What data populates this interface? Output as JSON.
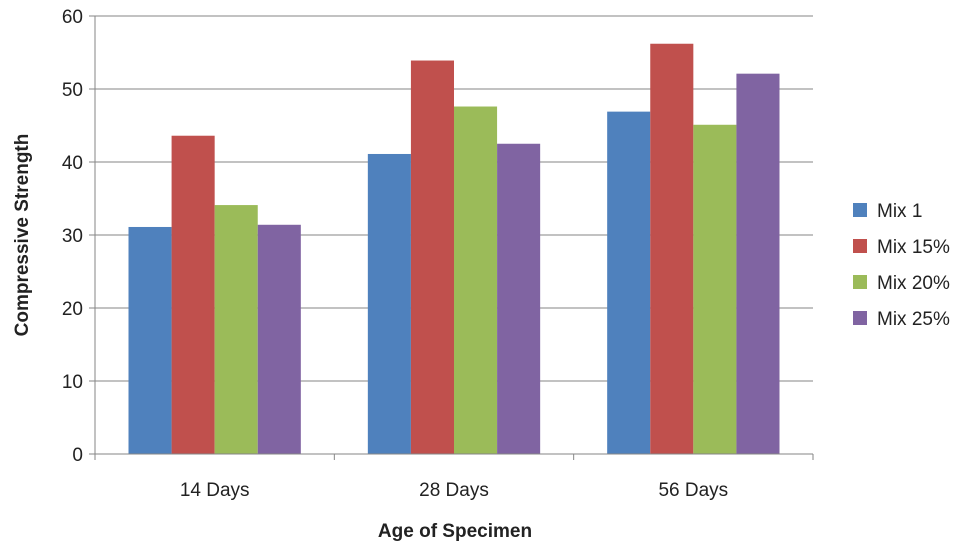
{
  "chart_data": {
    "type": "bar",
    "title": "",
    "xlabel": "Age of Specimen",
    "ylabel": "Compressive Strength",
    "categories": [
      "14 Days",
      "28 Days",
      "56 Days"
    ],
    "series": [
      {
        "name": "Mix 1",
        "color": "#4f81bd",
        "values": [
          31.1,
          41.1,
          46.9
        ]
      },
      {
        "name": "Mix 15%",
        "color": "#c0504d",
        "values": [
          43.6,
          53.9,
          56.2
        ]
      },
      {
        "name": "Mix 20%",
        "color": "#9bbb59",
        "values": [
          34.1,
          47.6,
          45.1
        ]
      },
      {
        "name": "Mix 25%",
        "color": "#8064a2",
        "values": [
          31.4,
          42.5,
          52.1
        ]
      }
    ],
    "ylim": [
      0,
      60
    ],
    "yticks": [
      0,
      10,
      20,
      30,
      40,
      50,
      60
    ],
    "grid": true,
    "legend_position": "right"
  }
}
